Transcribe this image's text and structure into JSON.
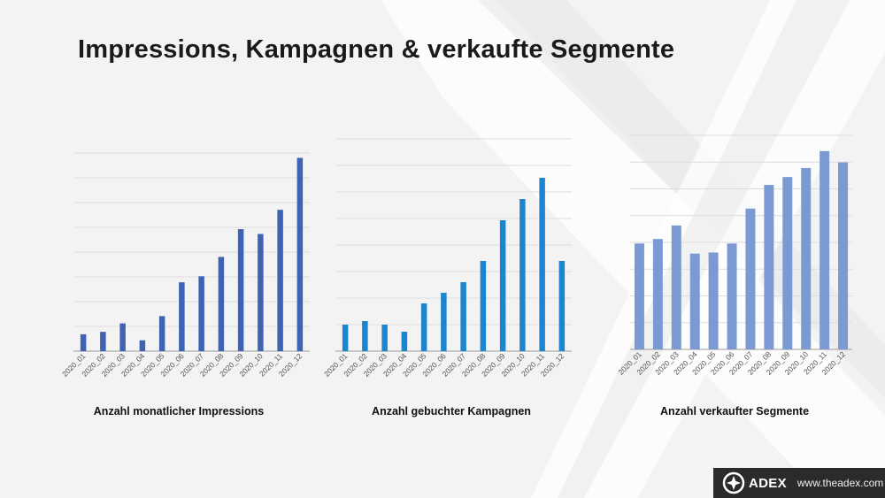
{
  "slide": {
    "title": "Impressions, Kampagnen & verkaufte Segmente"
  },
  "footer": {
    "logo_text": "ADEX",
    "url": "www.theadex.com"
  },
  "colors": {
    "bars_1": "#3e63b5",
    "bars_2": "#1b86cf",
    "bars_3": "#7b9ad3",
    "gridline": "#dcdcdc",
    "axis": "#9a9a9a"
  },
  "chart_data": [
    {
      "type": "bar",
      "categories": [
        "2020_01",
        "2020_02",
        "2020_03",
        "2020_04",
        "2020_05",
        "2020_06",
        "2020_07",
        "2020_08",
        "2020_09",
        "2020_10",
        "2020_11",
        "2020_12"
      ],
      "values": [
        0.7,
        0.8,
        1.15,
        0.45,
        1.45,
        2.85,
        3.1,
        3.9,
        5.05,
        4.85,
        5.85,
        8.0
      ],
      "ylim": [
        0,
        8.2
      ],
      "grid": true,
      "caption": "Anzahl monatlicher Impressions"
    },
    {
      "type": "bar",
      "categories": [
        "2020_01",
        "2020_02",
        "2020_03",
        "2020_04",
        "2020_05",
        "2020_06",
        "2020_07",
        "2020_08",
        "2020_09",
        "2020_10",
        "2020_11",
        "2020_12"
      ],
      "values": [
        0.75,
        0.85,
        0.75,
        0.55,
        1.35,
        1.65,
        1.95,
        2.55,
        3.7,
        4.3,
        4.9,
        2.55
      ],
      "ylim": [
        0,
        6
      ],
      "grid": true,
      "caption": "Anzahl gebuchter Kampagnen"
    },
    {
      "type": "bar",
      "categories": [
        "2020_01",
        "2020_02",
        "2020_03",
        "2020_04",
        "2020_05",
        "2020_06",
        "2020_07",
        "2020_08",
        "2020_09",
        "2020_10",
        "2020_11",
        "2020_12"
      ],
      "values": [
        4.7,
        4.9,
        5.5,
        4.25,
        4.3,
        4.7,
        6.25,
        7.3,
        7.65,
        8.05,
        8.8,
        8.3
      ],
      "ylim": [
        0,
        9.5
      ],
      "grid": true,
      "caption": "Anzahl verkaufter Segmente"
    }
  ]
}
